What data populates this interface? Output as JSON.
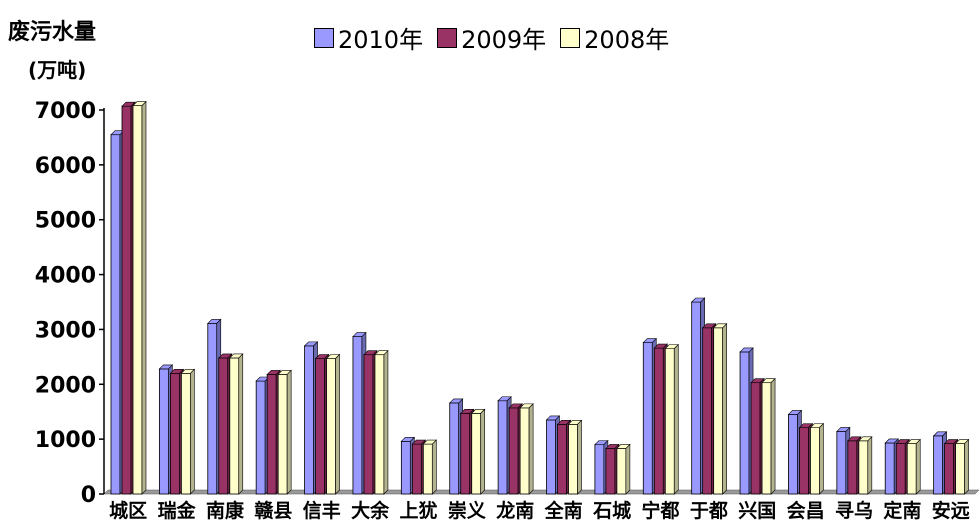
{
  "chart_data": {
    "type": "bar",
    "ylabel_line1": "废污水量",
    "ylabel_line2": "(万吨)",
    "ylim": [
      0,
      7000
    ],
    "yticks": [
      0,
      1000,
      2000,
      3000,
      4000,
      5000,
      6000,
      7000
    ],
    "categories": [
      "城区",
      "瑞金",
      "南康",
      "赣县",
      "信丰",
      "大余",
      "上犹",
      "崇义",
      "龙南",
      "全南",
      "石城",
      "宁都",
      "于都",
      "兴国",
      "会昌",
      "寻乌",
      "定南",
      "安远"
    ],
    "series": [
      {
        "name": "2010年",
        "color": "#9999ff",
        "values": [
          6550,
          2280,
          3110,
          2060,
          2700,
          2870,
          960,
          1660,
          1700,
          1350,
          900,
          2760,
          3500,
          2590,
          1450,
          1140,
          930,
          1060
        ]
      },
      {
        "name": "2009年",
        "color": "#993366",
        "values": [
          7070,
          2200,
          2480,
          2180,
          2470,
          2540,
          910,
          1470,
          1570,
          1270,
          830,
          2660,
          3030,
          2030,
          1210,
          970,
          920,
          920
        ]
      },
      {
        "name": "2008年",
        "color": "#ffffcc",
        "values": [
          7080,
          2200,
          2480,
          2180,
          2470,
          2540,
          910,
          1470,
          1570,
          1270,
          830,
          2650,
          3030,
          2030,
          1210,
          970,
          920,
          920
        ]
      }
    ],
    "grid": false,
    "legend_position": "top"
  }
}
